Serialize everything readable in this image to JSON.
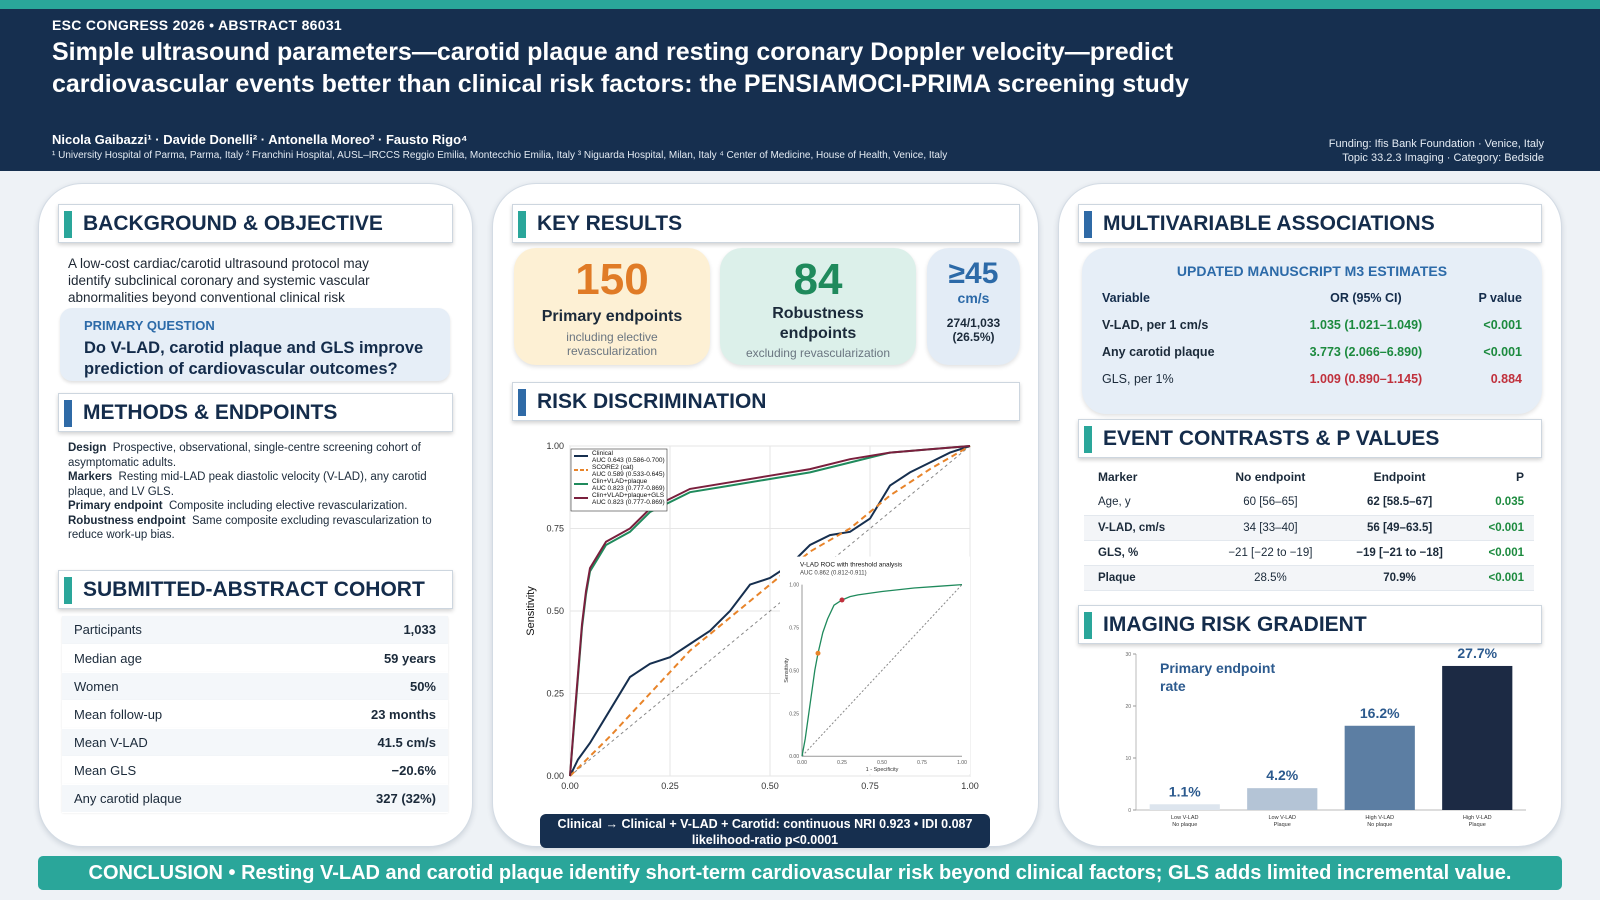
{
  "header": {
    "conference": "ESC CONGRESS 2026  •  ABSTRACT 86031",
    "title": "Simple ultrasound parameters—carotid plaque and resting coronary Doppler velocity—predict cardiovascular events better than clinical risk factors: the PENSIAMOCI-PRIMA screening study",
    "authors": "Nicola Gaibazzi¹ · Davide Donelli² · Antonella Moreo³ · Fausto Rigo⁴",
    "affiliations": "¹ University Hospital of Parma, Parma, Italy   ² Franchini Hospital, AUSL–IRCCS Reggio Emilia, Montecchio Emilia, Italy   ³ Niguarda Hospital, Milan, Italy   ⁴ Center of Medicine, House of Health, Venice, Italy",
    "funding": "Funding: Ifis Bank Foundation · Venice, Italy",
    "topic": "Topic 33.2.3 Imaging · Category: Bedside"
  },
  "background": {
    "heading": "BACKGROUND & OBJECTIVE",
    "text": "A low-cost cardiac/carotid ultrasound protocol may identify subclinical coronary and systemic vascular abnormalities beyond conventional clinical risk",
    "question_label": "PRIMARY QUESTION",
    "question": "Do V-LAD, carotid plaque and GLS improve prediction of cardiovascular outcomes?"
  },
  "methods": {
    "heading": "METHODS & ENDPOINTS",
    "items": [
      {
        "label": "Design",
        "text": "Prospective, observational, single-centre screening cohort of asymptomatic adults."
      },
      {
        "label": "Markers",
        "text": "Resting mid-LAD peak diastolic velocity (V-LAD), any carotid plaque, and LV GLS."
      },
      {
        "label": "Primary endpoint",
        "text": "Composite including elective revascularization."
      },
      {
        "label": "Robustness endpoint",
        "text": "Same composite excluding revascularization to reduce work-up bias."
      }
    ]
  },
  "cohort": {
    "heading": "SUBMITTED-ABSTRACT COHORT",
    "rows": [
      {
        "label": "Participants",
        "value": "1,033"
      },
      {
        "label": "Median age",
        "value": "59 years"
      },
      {
        "label": "Women",
        "value": "50%"
      },
      {
        "label": "Mean follow-up",
        "value": "23 months"
      },
      {
        "label": "Mean V-LAD",
        "value": "41.5 cm/s"
      },
      {
        "label": "Mean GLS",
        "value": "−20.6%"
      },
      {
        "label": "Any carotid plaque",
        "value": "327 (32%)"
      }
    ]
  },
  "key_results": {
    "heading": "KEY RESULTS",
    "card1": {
      "big": "150",
      "label": "Primary endpoints",
      "sub": "including elective revascularization"
    },
    "card2": {
      "big": "84",
      "label": "Robustness endpoints",
      "sub": "excluding revascularization"
    },
    "card3": {
      "big": "≥45",
      "unit": "cm/s",
      "sub1": "274/1,033",
      "sub2": "(26.5%)"
    }
  },
  "risk": {
    "heading": "RISK DISCRIMINATION",
    "nri": "Clinical →  Clinical + V-LAD + Carotid: continuous NRI 0.923  •  IDI 0.087",
    "lr": "likelihood-ratio p<0.0001"
  },
  "mv": {
    "heading": "MULTIVARIABLE ASSOCIATIONS",
    "subheading": "UPDATED MANUSCRIPT M3 ESTIMATES",
    "columns": [
      "Variable",
      "OR (95% CI)",
      "P value"
    ],
    "rows": [
      {
        "variable": "V-LAD, per 1 cm/s",
        "or": "1.035 (1.021–1.049)",
        "p": "<0.001"
      },
      {
        "variable": "Any carotid plaque",
        "or": "3.773 (2.066–6.890)",
        "p": "<0.001"
      },
      {
        "variable": "GLS, per 1%",
        "or": "1.009 (0.890–1.145)",
        "p": "0.884"
      }
    ]
  },
  "ev": {
    "heading": "EVENT CONTRASTS & P VALUES",
    "columns": [
      "Marker",
      "No endpoint",
      "Endpoint",
      "P"
    ],
    "rows": [
      {
        "marker": "Age, y",
        "no": "60 [56–65]",
        "yes": "62 [58.5–67]",
        "p": "0.035"
      },
      {
        "marker": "V-LAD, cm/s",
        "no": "34 [33–40]",
        "yes": "56 [49–63.5]",
        "p": "<0.001"
      },
      {
        "marker": "GLS, %",
        "no": "−21 [−22 to −19]",
        "yes": "−19 [−21 to −18]",
        "p": "<0.001"
      },
      {
        "marker": "Plaque",
        "no": "28.5%",
        "yes": "70.9%",
        "p": "<0.001"
      }
    ]
  },
  "gradient": {
    "heading": "IMAGING RISK GRADIENT"
  },
  "conclusion": "CONCLUSION  •  Resting V-LAD and carotid plaque identify short-term cardiovascular risk beyond clinical factors; GLS adds limited incremental value.",
  "colors": {
    "navy": "#162f4f",
    "teal": "#2aa69a",
    "orange": "#e8842a",
    "green": "#1f8a5c",
    "maroon": "#7a1f3d"
  },
  "chart_data": [
    {
      "type": "line",
      "xlabel": "",
      "ylabel": "Sensitivity",
      "xlim": [
        0,
        1
      ],
      "ylim": [
        0,
        1
      ],
      "x_ticks": [
        "0.00",
        "0.25",
        "0.50",
        "0.75",
        "1.00"
      ],
      "y_ticks": [
        "0.00",
        "0.25",
        "0.50",
        "0.75",
        "1.00"
      ],
      "legend_position": "top-left",
      "series": [
        {
          "name": "Clinical",
          "auc": "AUC 0.643 (0.586-0.700)",
          "color": "#162f4f",
          "x": [
            0,
            0.02,
            0.05,
            0.08,
            0.12,
            0.15,
            0.2,
            0.25,
            0.3,
            0.35,
            0.4,
            0.45,
            0.5,
            0.55,
            0.6,
            0.65,
            0.7,
            0.75,
            0.8,
            0.85,
            0.9,
            0.95,
            1
          ],
          "y": [
            0,
            0.05,
            0.1,
            0.16,
            0.24,
            0.3,
            0.34,
            0.36,
            0.4,
            0.44,
            0.5,
            0.58,
            0.6,
            0.64,
            0.7,
            0.73,
            0.74,
            0.78,
            0.88,
            0.92,
            0.95,
            0.98,
            1
          ]
        },
        {
          "name": "SCORE2 (cat)",
          "auc": "AUC 0.589 (0.533-0.645)",
          "color": "#e8842a",
          "dashed": true,
          "x": [
            0,
            0.1,
            0.2,
            0.3,
            0.4,
            0.5,
            0.6,
            0.7,
            0.8,
            0.9,
            1
          ],
          "y": [
            0,
            0.12,
            0.25,
            0.38,
            0.48,
            0.58,
            0.68,
            0.75,
            0.85,
            0.93,
            1
          ]
        },
        {
          "name": "Clin+VLAD+plaque",
          "auc": "AUC 0.823 (0.777-0.869)",
          "color": "#1f8a5c",
          "x": [
            0,
            0.01,
            0.02,
            0.03,
            0.04,
            0.05,
            0.07,
            0.09,
            0.12,
            0.15,
            0.2,
            0.3,
            0.4,
            0.5,
            0.6,
            0.7,
            0.8,
            0.9,
            1
          ],
          "y": [
            0,
            0.15,
            0.3,
            0.45,
            0.55,
            0.62,
            0.66,
            0.7,
            0.72,
            0.74,
            0.8,
            0.86,
            0.88,
            0.9,
            0.92,
            0.95,
            0.98,
            0.99,
            1
          ]
        },
        {
          "name": "Clin+VLAD+plaque+GLS",
          "auc": "AUC 0.823 (0.777-0.869)",
          "color": "#7a1f3d",
          "x": [
            0,
            0.01,
            0.02,
            0.03,
            0.04,
            0.05,
            0.07,
            0.09,
            0.12,
            0.15,
            0.2,
            0.3,
            0.4,
            0.5,
            0.6,
            0.7,
            0.8,
            0.9,
            1
          ],
          "y": [
            0,
            0.16,
            0.31,
            0.46,
            0.56,
            0.63,
            0.67,
            0.71,
            0.73,
            0.75,
            0.81,
            0.87,
            0.89,
            0.91,
            0.93,
            0.96,
            0.98,
            0.99,
            1
          ]
        }
      ]
    },
    {
      "type": "line",
      "title": "V-LAD ROC with threshold analysis",
      "subtitle": "AUC 0.862 (0.812-0.911)",
      "xlabel": "1 - Specificity",
      "ylabel": "Sensitivity",
      "xlim": [
        0,
        1
      ],
      "ylim": [
        0,
        1
      ],
      "x_ticks": [
        "0.00",
        "0.25",
        "0.50",
        "0.75",
        "1.00"
      ],
      "y_ticks": [
        "0.00",
        "0.25",
        "0.50",
        "0.75",
        "1.00"
      ],
      "series": [
        {
          "name": "V-LAD",
          "color": "#1f8a5c",
          "x": [
            0,
            0.02,
            0.05,
            0.08,
            0.1,
            0.13,
            0.16,
            0.2,
            0.25,
            0.3,
            0.35,
            0.5,
            0.7,
            0.85,
            1
          ],
          "y": [
            0,
            0.1,
            0.3,
            0.5,
            0.6,
            0.72,
            0.8,
            0.88,
            0.91,
            0.93,
            0.94,
            0.96,
            0.98,
            0.99,
            1
          ]
        }
      ],
      "thresholds": [
        {
          "x": 0.1,
          "y": 0.6,
          "color": "#e8842a"
        },
        {
          "x": 0.25,
          "y": 0.91,
          "color": "#c0303c"
        }
      ]
    },
    {
      "type": "bar",
      "title": "Primary endpoint rate",
      "categories": [
        "Low V-LAD No plaque",
        "Low V-LAD Plaque",
        "High V-LAD No plaque",
        "High V-LAD Plaque"
      ],
      "values": [
        1.1,
        4.2,
        16.2,
        27.7
      ],
      "labels": [
        "1.1%",
        "4.2%",
        "16.2%",
        "27.7%"
      ],
      "colors": [
        "#dde5ee",
        "#b4c4d6",
        "#5c7ea3",
        "#1c2a44"
      ],
      "ylim": [
        0,
        30
      ]
    }
  ]
}
